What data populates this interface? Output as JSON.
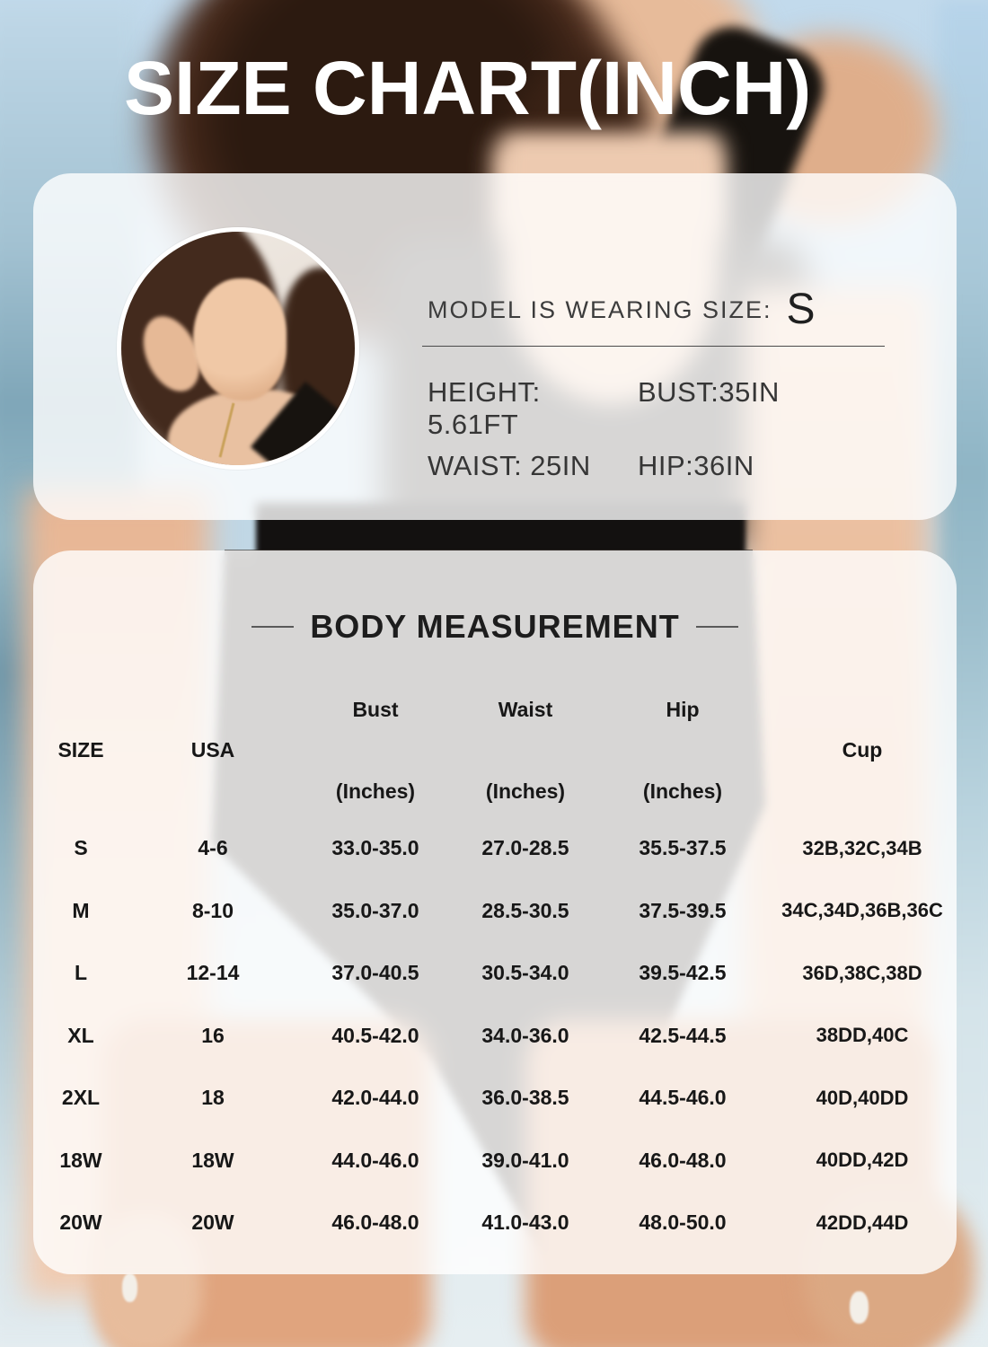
{
  "title": "SIZE CHART(INCH)",
  "model": {
    "wearing_label": "MODEL IS WEARING SIZE:",
    "wearing_size": "S",
    "height": "HEIGHT: 5.61FT",
    "bust": "BUST:35IN",
    "waist": "WAIST: 25IN",
    "hip": "HIP:36IN"
  },
  "table": {
    "section_title": "BODY MEASUREMENT",
    "headers": {
      "size": "SIZE",
      "usa": "USA",
      "bust": "Bust",
      "waist": "Waist",
      "hip": "Hip",
      "inches": "(Inches)",
      "cup": "Cup"
    },
    "rows": [
      {
        "size": "S",
        "usa": "4-6",
        "bust": "33.0-35.0",
        "waist": "27.0-28.5",
        "hip": "35.5-37.5",
        "cup": "32B,32C,34B"
      },
      {
        "size": "M",
        "usa": "8-10",
        "bust": "35.0-37.0",
        "waist": "28.5-30.5",
        "hip": "37.5-39.5",
        "cup": "34C,34D,36B,36C"
      },
      {
        "size": "L",
        "usa": "12-14",
        "bust": "37.0-40.5",
        "waist": "30.5-34.0",
        "hip": "39.5-42.5",
        "cup": "36D,38C,38D"
      },
      {
        "size": "XL",
        "usa": "16",
        "bust": "40.5-42.0",
        "waist": "34.0-36.0",
        "hip": "42.5-44.5",
        "cup": "38DD,40C"
      },
      {
        "size": "2XL",
        "usa": "18",
        "bust": "42.0-44.0",
        "waist": "36.0-38.5",
        "hip": "44.5-46.0",
        "cup": "40D,40DD"
      },
      {
        "size": "18W",
        "usa": "18W",
        "bust": "44.0-46.0",
        "waist": "39.0-41.0",
        "hip": "46.0-48.0",
        "cup": "40DD,42D"
      },
      {
        "size": "20W",
        "usa": "20W",
        "bust": "46.0-48.0",
        "waist": "41.0-43.0",
        "hip": "48.0-50.0",
        "cup": "42DD,44D"
      }
    ]
  },
  "colors": {
    "title_text": "#ffffff",
    "table_text": "#171717",
    "model_text": "#3c3c3c",
    "panel_overlay": "rgba(255,255,255,0.80)",
    "sky_blue": "#c2daec",
    "sea_teal": "#7fa6b8",
    "skin": "#e7bb9a",
    "hair_brown": "#3a2215",
    "swimsuit_black": "#17130f"
  }
}
